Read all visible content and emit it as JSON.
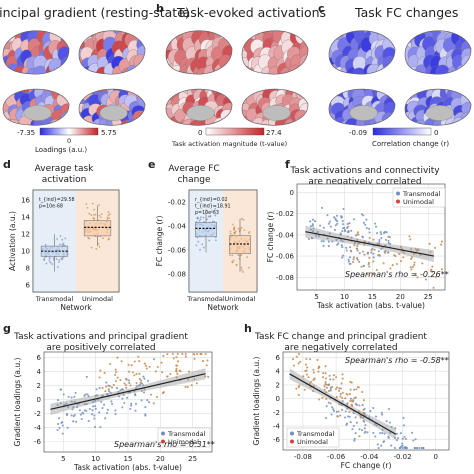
{
  "colors": {
    "transmodal": "#6f8fc6",
    "unimodal": "#c7874a",
    "red_scale_high": "#c7242a",
    "blue_scale_high": "#2c2ee0",
    "fit_line": "#222222",
    "trans_fill": "#bcd0ea",
    "uni_fill": "#f6c9a6"
  },
  "panels": {
    "b": {
      "letter": "b",
      "title": "Task-evoked activations"
    },
    "c": {
      "letter": "c",
      "title": "Task FC changes"
    }
  },
  "colorbars": {
    "a": {
      "label": "Loadings (a.u.)",
      "min": "-7.35",
      "mid": "0",
      "max": "5.75"
    },
    "b": {
      "label": "Task activation magnitude (t-value)",
      "min": "0",
      "max": "27.4"
    },
    "c": {
      "label": "Correlation change (r)",
      "min": "-0.09",
      "max": "0"
    }
  },
  "title_a": "rincipal gradient (resting-state)",
  "chart_data": [
    {
      "id": "d",
      "letter": "d",
      "type": "box",
      "title": "Average task activation",
      "title_lines": [
        "Average task",
        "activation"
      ],
      "xlabel": "Network",
      "ylabel": "Activation (a.u.)",
      "categories": [
        "Transmodal",
        "Unimodal"
      ],
      "yticks": [
        6,
        8,
        10,
        12,
        14,
        16
      ],
      "ylim": [
        5.2,
        17.2
      ],
      "boxes": [
        {
          "name": "Transmodal",
          "q1": 9.4,
          "median": 10.0,
          "q3": 10.6,
          "whisker_low": 7.6,
          "whisker_high": 12.0
        },
        {
          "name": "Unimodal",
          "q1": 11.8,
          "median": 12.8,
          "q3": 13.6,
          "whisker_low": 10.6,
          "whisker_high": 15.4
        }
      ],
      "stats": [
        "t_{ind}=29.58",
        "p=10e-68"
      ]
    },
    {
      "id": "e",
      "letter": "e",
      "type": "box",
      "title": "Average FC change",
      "title_lines": [
        "Average FC",
        "change"
      ],
      "xlabel": "Network",
      "ylabel": "FC change (r)",
      "categories": [
        "Transmodal",
        "Unimodal"
      ],
      "yticks": [
        -0.02,
        -0.04,
        -0.06,
        -0.08
      ],
      "ylim": [
        -0.095,
        -0.01
      ],
      "boxes": [
        {
          "name": "Transmodal",
          "q1": -0.049,
          "median": -0.042,
          "q3": -0.037,
          "whisker_low": -0.062,
          "whisker_high": -0.026
        },
        {
          "name": "Unimodal",
          "q1": -0.063,
          "median": -0.055,
          "q3": -0.048,
          "whisker_low": -0.078,
          "whisker_high": -0.034
        }
      ],
      "stats": [
        "r_{ind}=0.02",
        "t_{ind}=18.91",
        "p=10e-63"
      ]
    },
    {
      "id": "f",
      "letter": "f",
      "type": "scatter",
      "title": "Task activations and connectivity are negatively correlated",
      "title_lines": [
        "Task activations and connectivity",
        "are negatively correlated"
      ],
      "xlabel": "Task activation (abs. t-value)",
      "ylabel": "FC change (r)",
      "xticks": [
        5,
        10,
        15,
        20,
        25
      ],
      "yticks": [
        0.0,
        -0.02,
        -0.04,
        -0.06,
        -0.08
      ],
      "xlim": [
        1.5,
        28
      ],
      "ylim": [
        -0.092,
        0.008
      ],
      "legend": [
        "Transmodal",
        "Unimodal"
      ],
      "fit": {
        "x0": 3,
        "y0": -0.037,
        "x1": 26,
        "y1": -0.06
      },
      "annotation": "Spearman's rho = -0.26**"
    },
    {
      "id": "g",
      "letter": "g",
      "type": "scatter",
      "title": "Task activations and principal gradient are positively correlated",
      "title_lines": [
        "Task activations and principal gradient",
        "are positively correlated"
      ],
      "xlabel": "Task activation (abs. t-value)",
      "ylabel": "Gradient loadings (a.u.)",
      "xticks": [
        5,
        10,
        15,
        20,
        25
      ],
      "yticks": [
        6,
        4,
        2,
        0,
        -2,
        -4,
        -6
      ],
      "xlim": [
        2,
        28
      ],
      "ylim": [
        -7.5,
        6.8
      ],
      "legend": [
        "Transmodal",
        "Unimodal"
      ],
      "fit": {
        "x0": 3,
        "y0": -1.4,
        "x1": 27,
        "y1": 3.7
      },
      "annotation": "Spearman's rho = 0.31**"
    },
    {
      "id": "h",
      "letter": "h",
      "type": "scatter",
      "title": "Task FC change and principal gradient are negatively correlated",
      "title_lines": [
        "Task FC change and principal gradient",
        "are negatively correlated"
      ],
      "xlabel": "FC change (r)",
      "ylabel": "Gradient loadings (a.u.)",
      "xticks": [
        -0.08,
        -0.06,
        -0.04,
        -0.02,
        0.0
      ],
      "yticks": [
        6,
        4,
        2,
        0,
        -2,
        -4,
        -6
      ],
      "xlim": [
        -0.092,
        0.008
      ],
      "ylim": [
        -7.5,
        6.8
      ],
      "legend": [
        "Transmodal",
        "Unimodal"
      ],
      "fit": {
        "x0": -0.088,
        "y0": 3.6,
        "x1": -0.024,
        "y1": -5.2
      },
      "annotation": "Spearman's rho = -0.58**"
    }
  ]
}
